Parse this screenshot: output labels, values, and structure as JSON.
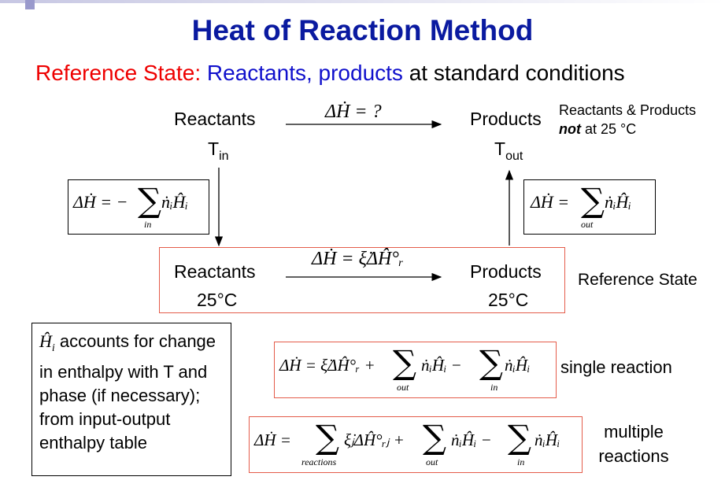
{
  "slide": {
    "title": "Heat of Reaction Method",
    "subtitle": {
      "prefix": "Reference State: ",
      "middle": "Reactants, products",
      "suffix": " at standard conditions"
    },
    "top_row": {
      "reactants": "Reactants",
      "t_in": "T",
      "t_in_sub": "in",
      "arrow_eq": "ΔḢ = ?",
      "products": "Products",
      "t_out": "T",
      "t_out_sub": "out",
      "note_line1": "Reactants & Products",
      "note_not": "not",
      "note_rest": " at 25 °C"
    },
    "left_eq": {
      "lhs": "ΔḢ = −",
      "sum_sub": "in",
      "term": "ṅᵢĤᵢ"
    },
    "right_eq": {
      "lhs": "ΔḢ = ",
      "sum_sub": "out",
      "term": "ṅᵢĤᵢ"
    },
    "ref_row": {
      "reactants": "Reactants",
      "reactants_temp": "25°C",
      "arrow_eq": "ΔḢ = ξ̇ΔĤ°ᵣ",
      "products": "Products",
      "products_temp": "25°C",
      "label": "Reference State"
    },
    "enthalpy_note": {
      "symbol": "Ĥ",
      "symbol_sub": "i",
      "rest": " accounts for change in enthalpy with T and phase (if necessary); from input-output enthalpy table"
    },
    "single_eq": {
      "lhs": "ΔḢ = ξ̇ΔĤ°ᵣ +",
      "term1": "ṅᵢĤᵢ −",
      "sub1": "out",
      "term2": "ṅᵢĤᵢ",
      "sub2": "in",
      "label": "single reaction"
    },
    "multi_eq": {
      "lhs": "ΔḢ =",
      "term0": "ξ̇ⱼΔĤ°ᵣⱼ +",
      "sub0": "reactions",
      "term1": "ṅᵢĤᵢ −",
      "sub1": "out",
      "term2": "ṅᵢĤᵢ",
      "sub2": "in",
      "label_line1": "multiple",
      "label_line2": "reactions"
    }
  }
}
